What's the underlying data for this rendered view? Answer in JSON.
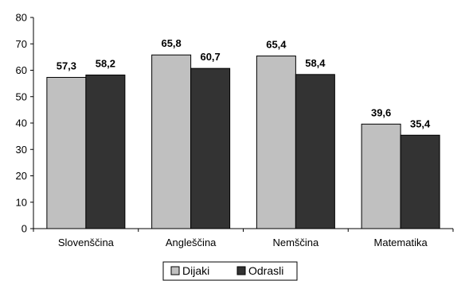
{
  "chart_data": {
    "type": "bar",
    "categories": [
      "Slovenščina",
      "Angleščina",
      "Nemščina",
      "Matematika"
    ],
    "series": [
      {
        "name": "Dijaki",
        "values": [
          57.3,
          65.8,
          65.4,
          39.6
        ],
        "labels": [
          "57,3",
          "65,8",
          "65,4",
          "39,6"
        ],
        "color": "#c0c0c0"
      },
      {
        "name": "Odrasli",
        "values": [
          58.2,
          60.7,
          58.4,
          35.4
        ],
        "labels": [
          "58,2",
          "60,7",
          "58,4",
          "35,4"
        ],
        "color": "#333333"
      }
    ],
    "ylim": [
      0,
      80
    ],
    "yticks": [
      "0",
      "10",
      "20",
      "30",
      "40",
      "50",
      "60",
      "70",
      "80"
    ],
    "grid": false,
    "legend_position": "bottom"
  }
}
